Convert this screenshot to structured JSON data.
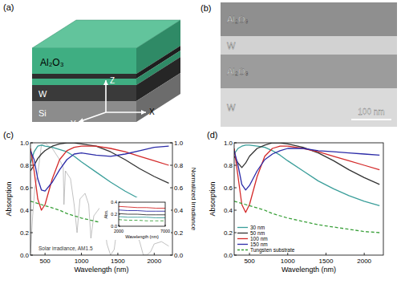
{
  "schematic": {
    "title": "(a)",
    "labels": [
      "Al₂O₃",
      "W",
      "Si"
    ],
    "axes": [
      "X",
      "Y",
      "Z"
    ]
  },
  "micrograph": {
    "title": "(b)",
    "layers": [
      "Al₂O₃",
      "W",
      "Al₂O₃",
      "W"
    ],
    "scale_bar": "100 nm"
  },
  "chart_data": [
    {
      "type": "line",
      "title": "(c)",
      "x_label": "Wavelength (nm)",
      "y_label": "Absorption",
      "y2_label": "Normalized Irradiance",
      "xlim": [
        300,
        2250
      ],
      "xticks": [
        500,
        1000,
        1500,
        2000
      ],
      "ylim": [
        0,
        1
      ],
      "yticks": [
        {
          "value": 0,
          "label": "0.0"
        },
        {
          "value": 0.2,
          "label": "0.2"
        },
        {
          "value": 0.4,
          "label": "0.4"
        },
        {
          "value": 0.6,
          "label": "0.6"
        },
        {
          "value": 0.8,
          "label": "0.8"
        },
        {
          "value": 1,
          "label": "1.0"
        }
      ],
      "y2lim": [
        0,
        1
      ],
      "y2ticks": [
        {
          "value": 0,
          "label": "0.0"
        },
        {
          "value": 0.2,
          "label": "0.2"
        },
        {
          "value": 0.4,
          "label": "0.4"
        },
        {
          "value": 0.6,
          "label": "0.6"
        },
        {
          "value": 0.8,
          "label": "0.8"
        },
        {
          "value": 1,
          "label": "1.0"
        }
      ],
      "x": [
        300,
        350,
        400,
        450,
        500,
        600,
        700,
        800,
        900,
        1000,
        1200,
        1400,
        1600,
        1800,
        2000,
        2200
      ],
      "series": [
        {
          "name": "Solar irradiance, AM1.5",
          "color": "#aaaaaa",
          "axis": "y2",
          "x": [
            300,
            330,
            360,
            400,
            450,
            500,
            550,
            600,
            650,
            700,
            750,
            760,
            780,
            850,
            900,
            940,
            980,
            1050,
            1100,
            1130,
            1170,
            1250,
            1300,
            1350,
            1400,
            1450,
            1500,
            1600,
            1700,
            1800,
            1850,
            1900,
            1950,
            2000,
            2100,
            2200
          ],
          "values": [
            0.02,
            0.35,
            0.6,
            0.72,
            0.98,
            1.0,
            0.97,
            0.95,
            0.9,
            0.85,
            0.78,
            0.45,
            0.75,
            0.68,
            0.45,
            0.2,
            0.5,
            0.55,
            0.45,
            0.15,
            0.35,
            0.42,
            0.38,
            0.1,
            0.0,
            0.05,
            0.3,
            0.3,
            0.27,
            0.12,
            0.0,
            0.0,
            0.03,
            0.1,
            0.12,
            0.08
          ]
        },
        {
          "color": "#3a9e9a",
          "values": [
            0.82,
            0.92,
            0.97,
            0.98,
            0.97,
            0.96,
            0.94,
            0.92,
            0.88,
            0.83,
            0.74,
            0.65,
            0.57,
            0.5,
            0.45,
            0.41
          ]
        },
        {
          "color": "#333333",
          "values": [
            0.75,
            0.8,
            0.86,
            0.9,
            0.93,
            0.97,
            0.99,
            1.0,
            1.0,
            0.99,
            0.97,
            0.92,
            0.85,
            0.77,
            0.7,
            0.64
          ]
        },
        {
          "color": "#d42a2a",
          "values": [
            0.95,
            0.75,
            0.5,
            0.4,
            0.45,
            0.68,
            0.85,
            0.93,
            0.96,
            0.97,
            0.97,
            0.95,
            0.92,
            0.88,
            0.84,
            0.8
          ]
        },
        {
          "color": "#2c2ca8",
          "values": [
            0.93,
            0.85,
            0.68,
            0.58,
            0.57,
            0.65,
            0.76,
            0.85,
            0.9,
            0.91,
            0.89,
            0.88,
            0.9,
            0.93,
            0.96,
            0.97
          ]
        },
        {
          "color": "#3aa03a",
          "line_style": "dashed",
          "values": [
            0.48,
            0.47,
            0.46,
            0.45,
            0.44,
            0.42,
            0.4,
            0.37,
            0.35,
            0.33,
            0.3,
            0.27,
            0.25,
            0.23,
            0.21,
            0.2
          ]
        }
      ]
    },
    {
      "type": "line",
      "x_label": "Wavelength (nm)",
      "y_label": "Abs.",
      "xlim": [
        2000,
        7000
      ],
      "xticks": [
        2000,
        7000
      ],
      "ylim": [
        0,
        0.4
      ],
      "yticks": [
        {
          "value": 0,
          "label": "0.0"
        },
        {
          "value": 0.2,
          "label": "0.2"
        },
        {
          "value": 0.4,
          "label": "0.4"
        }
      ],
      "x": [
        2000,
        3000,
        4000,
        5000,
        6000,
        7000
      ],
      "series": [
        {
          "color": "#d42a2a",
          "values": [
            0.33,
            0.32,
            0.31,
            0.31,
            0.3,
            0.3
          ]
        },
        {
          "color": "#2c2ca8",
          "values": [
            0.27,
            0.26,
            0.26,
            0.25,
            0.25,
            0.25
          ]
        },
        {
          "color": "#333333",
          "values": [
            0.21,
            0.2,
            0.2,
            0.19,
            0.19,
            0.19
          ]
        },
        {
          "color": "#3a9e9a",
          "values": [
            0.16,
            0.15,
            0.15,
            0.15,
            0.14,
            0.14
          ]
        },
        {
          "color": "#3aa03a",
          "line_style": "dashed",
          "values": [
            0.11,
            0.1,
            0.1,
            0.09,
            0.09,
            0.09
          ]
        }
      ]
    },
    {
      "type": "line",
      "title": "(d)",
      "x_label": "Wavelength (nm)",
      "y_label": "Absorption",
      "legend": "lower left",
      "xlim": [
        300,
        2250
      ],
      "xticks": [
        500,
        1000,
        1500,
        2000
      ],
      "ylim": [
        0,
        1
      ],
      "yticks": [
        {
          "value": 0,
          "label": "0.0"
        },
        {
          "value": 0.2,
          "label": "0.2"
        },
        {
          "value": 0.4,
          "label": "0.4"
        },
        {
          "value": 0.6,
          "label": "0.6"
        },
        {
          "value": 0.8,
          "label": "0.8"
        },
        {
          "value": 1,
          "label": "1.0"
        }
      ],
      "x": [
        300,
        350,
        400,
        450,
        500,
        600,
        700,
        800,
        900,
        1000,
        1200,
        1400,
        1600,
        1800,
        2000,
        2200
      ],
      "series": [
        {
          "name": "30 nm",
          "color": "#3a9e9a",
          "values": [
            0.9,
            0.95,
            0.97,
            0.98,
            0.98,
            0.97,
            0.96,
            0.93,
            0.89,
            0.84,
            0.75,
            0.66,
            0.59,
            0.53,
            0.48,
            0.44
          ]
        },
        {
          "name": "50 nm",
          "color": "#333333",
          "values": [
            0.88,
            0.82,
            0.78,
            0.82,
            0.88,
            0.95,
            0.98,
            1.0,
            1.0,
            0.99,
            0.96,
            0.91,
            0.84,
            0.76,
            0.69,
            0.63
          ]
        },
        {
          "name": "100 nm",
          "color": "#d42a2a",
          "values": [
            0.95,
            0.7,
            0.45,
            0.38,
            0.45,
            0.7,
            0.88,
            0.95,
            0.97,
            0.97,
            0.95,
            0.92,
            0.88,
            0.84,
            0.8,
            0.76
          ]
        },
        {
          "name": "150 nm",
          "color": "#2c2ca8",
          "values": [
            0.93,
            0.8,
            0.63,
            0.58,
            0.62,
            0.75,
            0.85,
            0.9,
            0.93,
            0.95,
            0.95,
            0.93,
            0.92,
            0.91,
            0.9,
            0.89
          ]
        },
        {
          "name": "Tungsten substrate",
          "color": "#3aa03a",
          "line_style": "dashed",
          "values": [
            0.48,
            0.47,
            0.46,
            0.45,
            0.44,
            0.42,
            0.4,
            0.37,
            0.35,
            0.33,
            0.3,
            0.27,
            0.25,
            0.23,
            0.21,
            0.2
          ]
        }
      ]
    }
  ]
}
